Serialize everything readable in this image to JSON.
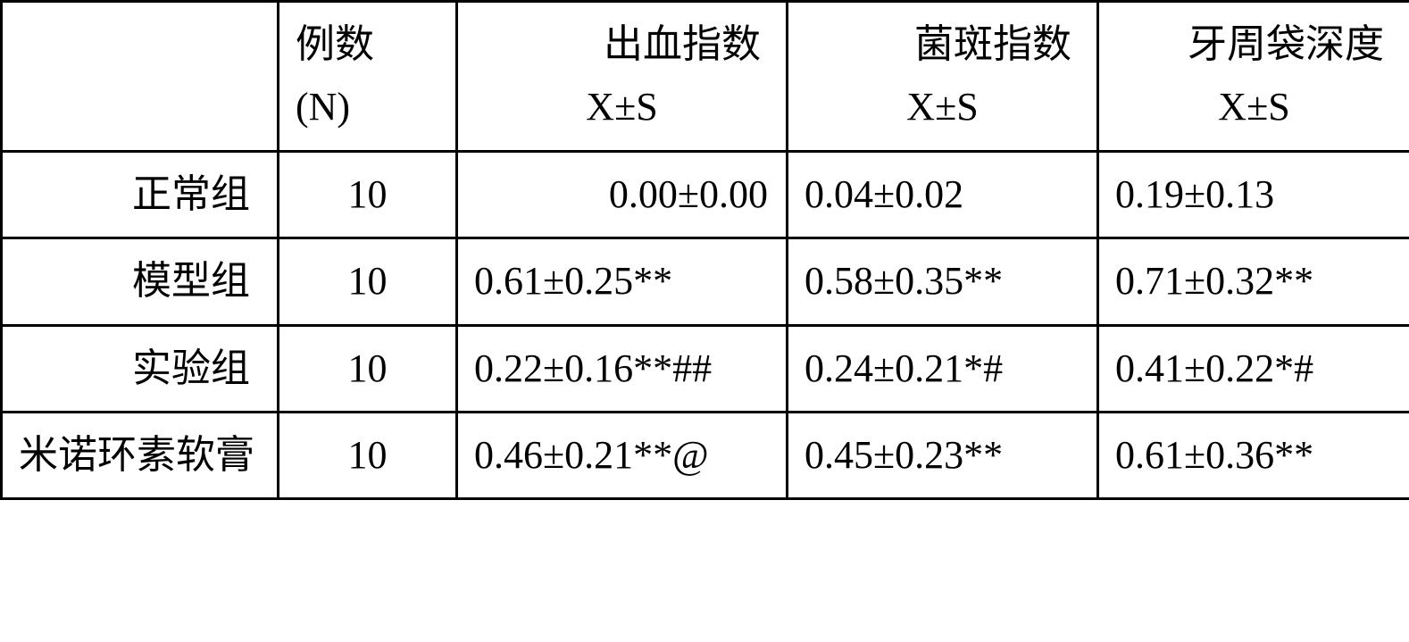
{
  "table": {
    "border_color": "#000000",
    "background_color": "#ffffff",
    "text_color": "#000000",
    "font_size_pt": 33,
    "columns": {
      "group": "",
      "n_line1": "例数",
      "n_line2": "(N)",
      "bleeding_line1": "出血指数",
      "bleeding_line2": "X±S",
      "plaque_line1": "菌斑指数",
      "plaque_line2": "X±S",
      "pocket_line1": "牙周袋深度",
      "pocket_line2": "X±S"
    },
    "rows": [
      {
        "label": "正常组",
        "label_align": "right",
        "n": "10",
        "bleeding": "0.00±0.00",
        "bleeding_align": "right",
        "plaque": "0.04±0.02",
        "plaque_align": "left",
        "pocket": "0.19±0.13",
        "pocket_align": "left"
      },
      {
        "label": "模型组",
        "label_align": "right",
        "n": "10",
        "bleeding": "0.61±0.25**",
        "bleeding_align": "left",
        "plaque": "0.58±0.35**",
        "plaque_align": "left",
        "pocket": "0.71±0.32**",
        "pocket_align": "left"
      },
      {
        "label": "实验组",
        "label_align": "right",
        "n": "10",
        "bleeding": "0.22±0.16**##",
        "bleeding_align": "left",
        "plaque": "0.24±0.21*#",
        "plaque_align": "left",
        "pocket": "0.41±0.22*#",
        "pocket_align": "left"
      },
      {
        "label": "米诺环素软膏",
        "label_align": "left",
        "n": "10",
        "bleeding": "0.46±0.21**@",
        "bleeding_align": "left",
        "plaque": "0.45±0.23**",
        "plaque_align": "left",
        "pocket": "0.61±0.36**",
        "pocket_align": "left"
      }
    ]
  }
}
